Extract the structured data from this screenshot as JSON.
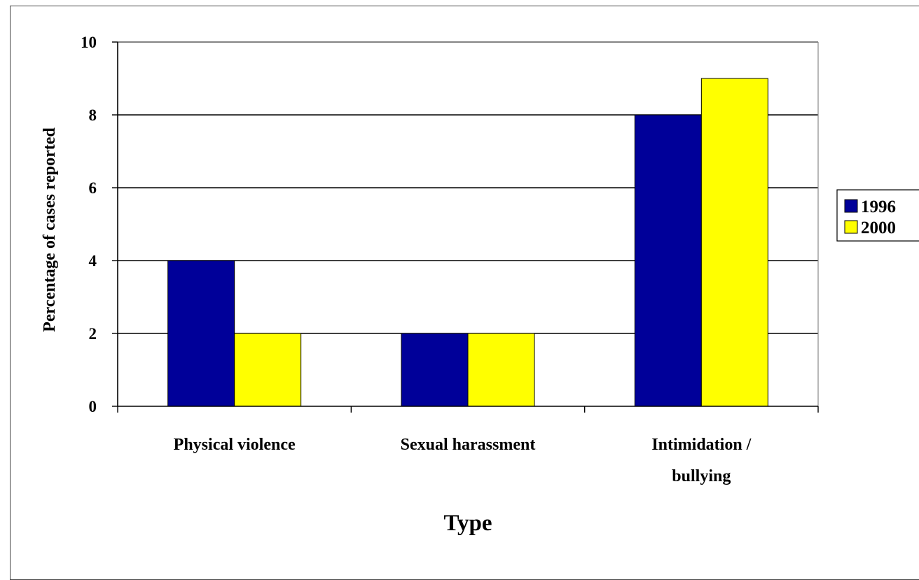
{
  "chart_data": {
    "type": "bar",
    "title": "",
    "xlabel": "Type",
    "ylabel": "Percentage of cases reported",
    "categories": [
      [
        "Physical violence"
      ],
      [
        "Sexual harassment"
      ],
      [
        "Intimidation /",
        "bullying"
      ]
    ],
    "series": [
      {
        "name": "1996",
        "values": [
          4,
          2,
          8
        ],
        "color": "#000099"
      },
      {
        "name": "2000",
        "values": [
          2,
          2,
          9
        ],
        "color": "#ffff00"
      }
    ],
    "ylim": [
      0,
      10
    ],
    "yticks": [
      0,
      2,
      4,
      6,
      8,
      10
    ],
    "grid": true,
    "legend": "right"
  }
}
